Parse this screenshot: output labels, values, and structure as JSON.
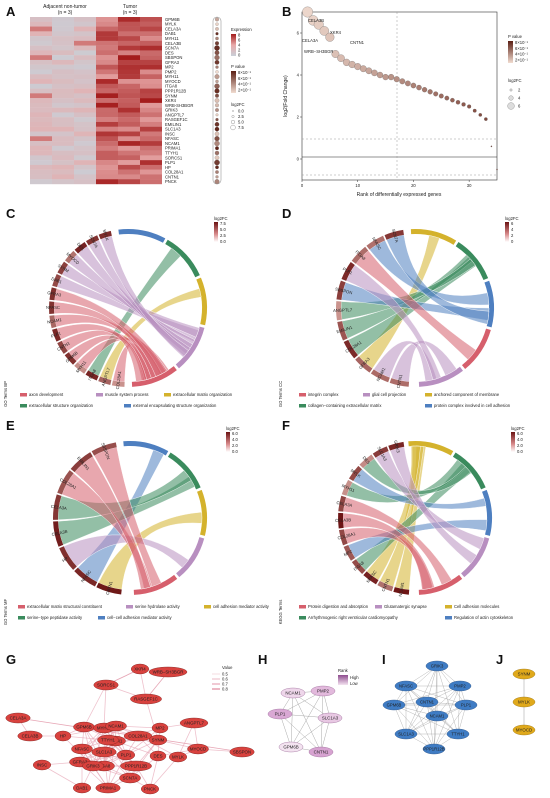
{
  "labels": {
    "A": "A",
    "B": "B",
    "C": "C",
    "D": "D",
    "E": "E",
    "F": "F",
    "G": "G",
    "H": "H",
    "I": "I",
    "J": "J"
  },
  "panelA": {
    "col_labels": [
      "Adjacent non-tumor\n(n = 3)",
      "Tumor\n(n = 3)"
    ],
    "col1": "Adjacent non-tumor",
    "col1n": "(n = 3)",
    "col2": "Tumor",
    "col2n": "(n = 3)",
    "genes": [
      "GPM6B",
      "MYLK",
      "CELA3A",
      "DAB1",
      "MYH11",
      "CELA3B",
      "SCN7A",
      "DES",
      "SBSPON",
      "GFRA3",
      "MP2",
      "PMP2",
      "MYH11",
      "MYOCD",
      "ITGA8",
      "PPP1R12B",
      "SYNM",
      "XKR4",
      "WRB-SH3BGR",
      "GRIK3",
      "ANGPTL7",
      "RASGEF1C",
      "EMILIN1",
      "SLC1A3",
      "INSC",
      "NFASC",
      "NCAM1",
      "PRIMA1",
      "TTYH1",
      "SORCS1",
      "PLP1",
      "HP",
      "COL28A1",
      "CNTN1",
      "PNCK"
    ],
    "expression_title": "Expression",
    "expression_ticks": [
      "8",
      "6",
      "4",
      "2",
      "0"
    ],
    "pvalue_title": "P value",
    "pvalue_ticks": [
      "8×10⁻¹",
      "6×10⁻¹",
      "4×10⁻¹",
      "2×10⁻¹"
    ],
    "log2fc_title": "log2FC",
    "log2fc_ticks": [
      "0.0",
      "2.5",
      "5.0",
      "7.5"
    ]
  },
  "panelB": {
    "ylabel": "log2(Fold Change)",
    "xlabel": "Rank of differentially expressed genes",
    "xticks": [
      "0",
      "10",
      "20",
      "30"
    ],
    "yticks": [
      "0",
      "2",
      "4",
      "6"
    ],
    "annotations": [
      "CELA3B",
      "XKR4",
      "CELA3A",
      "CNTN1",
      "WRB−SH3BGR"
    ],
    "pvalue_title": "P value",
    "pvalue_ticks": [
      "8×10⁻¹",
      "6×10⁻¹",
      "4×10⁻¹",
      "2×10⁻¹"
    ],
    "size_title": "log2FC",
    "size_ticks": [
      "2",
      "4",
      "6"
    ]
  },
  "chart_data": {
    "type": "scatter",
    "xlabel": "Rank of differentially expressed genes",
    "ylabel": "log2(Fold Change)",
    "xlim": [
      0,
      35
    ],
    "ylim": [
      -1,
      7
    ],
    "x": [
      1,
      2,
      3,
      4,
      5,
      6,
      7,
      8,
      9,
      10,
      11,
      12,
      13,
      14,
      15,
      16,
      17,
      18,
      19,
      20,
      21,
      22,
      23,
      24,
      25,
      26,
      27,
      28,
      29,
      30,
      31,
      32,
      33,
      34,
      35
    ],
    "y": [
      7.0,
      6.6,
      6.4,
      6.1,
      5.8,
      5.0,
      4.8,
      4.6,
      4.5,
      4.4,
      4.3,
      4.2,
      4.1,
      4.0,
      3.9,
      3.9,
      3.8,
      3.7,
      3.6,
      3.5,
      3.4,
      3.3,
      3.2,
      3.1,
      3.0,
      2.9,
      2.8,
      2.7,
      2.6,
      2.5,
      2.3,
      2.1,
      1.9,
      0.6,
      -0.5
    ]
  },
  "panelC": {
    "side_title": "GO Terms BP",
    "genes": [
      "COL28A1",
      "ANGPTL7",
      "ITGA8",
      "MYH11",
      "GPM6B",
      "CNTN1",
      "PLP1",
      "NCAM1",
      "NFASC",
      "GFRA3",
      "DAB1",
      "SYNM",
      "MYOCD",
      "DES",
      "SCN7A",
      "MYLK"
    ],
    "legend": [
      "axon development",
      "muscle system process",
      "extracellular matrix organization",
      "extracellular structure organization",
      "external encapsulating structure organization"
    ],
    "scale_title": "log2FC",
    "scale_ticks": [
      "7.5",
      "5.0",
      "2.5",
      "0.0"
    ]
  },
  "panelD": {
    "side_title": "GO Terms CC",
    "genes": [
      "CNTN1",
      "NCAM1",
      "GFRA3",
      "COL28A1",
      "EMILIN1",
      "ANGPTL7",
      "SBSPON",
      "PLP1",
      "ITGA8",
      "NFASC",
      "SCN7A"
    ],
    "legend": [
      "integrin complex",
      "glial cell projection",
      "anchored component of membrane",
      "collagen−containing extracellular matrix",
      "protein complex involved in cell adhesion"
    ],
    "scale_title": "log2FC",
    "scale_ticks": [
      "6",
      "4",
      "2",
      "0"
    ]
  },
  "panelE": {
    "side_title": "GO Terms MF",
    "genes": [
      "CNTN1",
      "NFASC",
      "HP",
      "CELA3B",
      "CELA3A",
      "COL28A1",
      "EMILIN1",
      "SBSPON"
    ],
    "legend": [
      "extracellular matrix structural constituent",
      "serine hydrolase activity",
      "cell adhesion mediator activity",
      "serine−type peptidase activity",
      "cell−cell adhesion mediator activity"
    ],
    "scale_title": "log2FC",
    "scale_ticks": [
      "6.0",
      "4.0",
      "2.0",
      "0.0"
    ]
  },
  "panelF": {
    "side_title": "KEGG Terms",
    "genes": [
      "NCAM1",
      "CNTN1",
      "NFASC",
      "ITGA8",
      "MP2",
      "COL28A1",
      "CELA3B",
      "CELA3A",
      "MYH11",
      "MYLK",
      "DES",
      "SLC1A3",
      "GRIK3"
    ],
    "legend": [
      "Protein digestion and absorption",
      "Glutamatergic synapse",
      "Cell adhesion molecules",
      "Arrhythmogenic right ventricular cardiomyopathy",
      "Regulation of actin cytoskeleton"
    ],
    "scale_title": "log2FC",
    "scale_ticks": [
      "6.0",
      "4.0",
      "2.0",
      "0.0"
    ]
  },
  "panelG": {
    "legend_title": "Value",
    "legend_ticks": [
      "0.5",
      "0.6",
      "0.7",
      "0.8"
    ],
    "nodes": [
      "XKR4",
      "WRB−SH3BGR",
      "SORCS1",
      "RASGEF1C",
      "CELA3A",
      "CELA3B",
      "HP",
      "GPM6B",
      "MYH11",
      "CNTN1",
      "NFASC",
      "SLC1A3",
      "ITGA8",
      "COL28A1",
      "SYNM",
      "ANGPTL7",
      "MYOCD",
      "DES",
      "MYLK",
      "PLP1",
      "PPP1R12B",
      "GFRA3",
      "GRIK3",
      "NCAM1",
      "TTYH1",
      "INSC",
      "DAB1",
      "PRIMA1",
      "PNCK",
      "SBSPON",
      "SCN7A",
      "MP2"
    ]
  },
  "panelH": {
    "rank_title": "Rank",
    "rank_high": "High",
    "rank_low": "Low",
    "nodes": [
      "NCAM1",
      "PMP2",
      "PLP1",
      "SLC1A3",
      "GPM6B",
      "CNTN1"
    ]
  },
  "panelI": {
    "nodes": [
      "GRIK3",
      "NFASC",
      "PMP2",
      "GPM6B",
      "CNTN1",
      "PLP1",
      "NCAM1",
      "SLC1A3",
      "TTYH1",
      "PPP1R12B"
    ]
  },
  "panelJ": {
    "nodes": [
      "SYNM",
      "MYLK",
      "MYOCD"
    ]
  },
  "colors": {
    "heat_low": "#c9d0d8",
    "heat_high": "#a31b1b",
    "pink_mid": "#e8a9a9",
    "c1": "#d9d9d9",
    "term_red": "#d65f6c",
    "term_purple": "#b88fc0",
    "term_gold": "#d4b22c",
    "term_green": "#3a8b5d",
    "term_blue": "#4e7fc0",
    "node_red": "#d9423e",
    "node_blue": "#3f7cc4",
    "node_gold": "#e0a91b",
    "node_pink": "#d8a8d4"
  }
}
